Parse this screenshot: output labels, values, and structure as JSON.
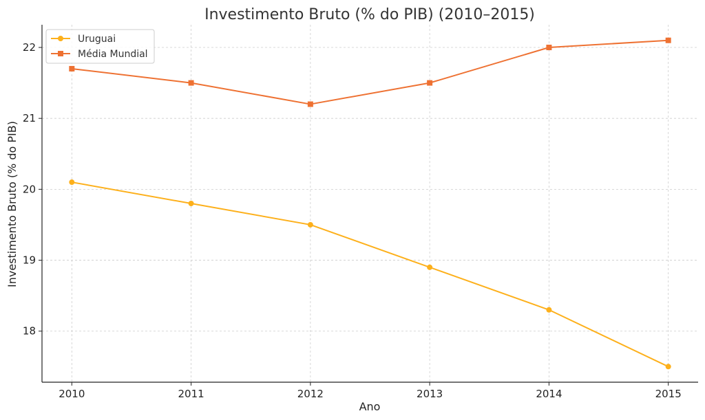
{
  "chart_data": {
    "type": "line",
    "title": "Investimento Bruto (% do PIB) (2010–2015)",
    "xlabel": "Ano",
    "ylabel": "Investimento Bruto (% do PIB)",
    "x": [
      2010,
      2011,
      2012,
      2013,
      2014,
      2015
    ],
    "x_tick_labels": [
      "2010",
      "2011",
      "2012",
      "2013",
      "2014",
      "2015"
    ],
    "y_ticks": [
      18,
      19,
      20,
      21,
      22
    ],
    "y_tick_labels": [
      "18",
      "19",
      "20",
      "21",
      "22"
    ],
    "xlim": [
      2009.75,
      2015.25
    ],
    "ylim": [
      17.28,
      22.32
    ],
    "grid": true,
    "legend_position": "top-left",
    "series": [
      {
        "name": "Uruguai",
        "color": "#FDB01B",
        "marker": "circle",
        "values": [
          20.1,
          19.8,
          19.5,
          18.9,
          18.3,
          17.5
        ]
      },
      {
        "name": "Média Mundial",
        "color": "#EE7132",
        "marker": "square",
        "values": [
          21.7,
          21.5,
          21.2,
          21.5,
          22.0,
          22.1
        ]
      }
    ]
  }
}
